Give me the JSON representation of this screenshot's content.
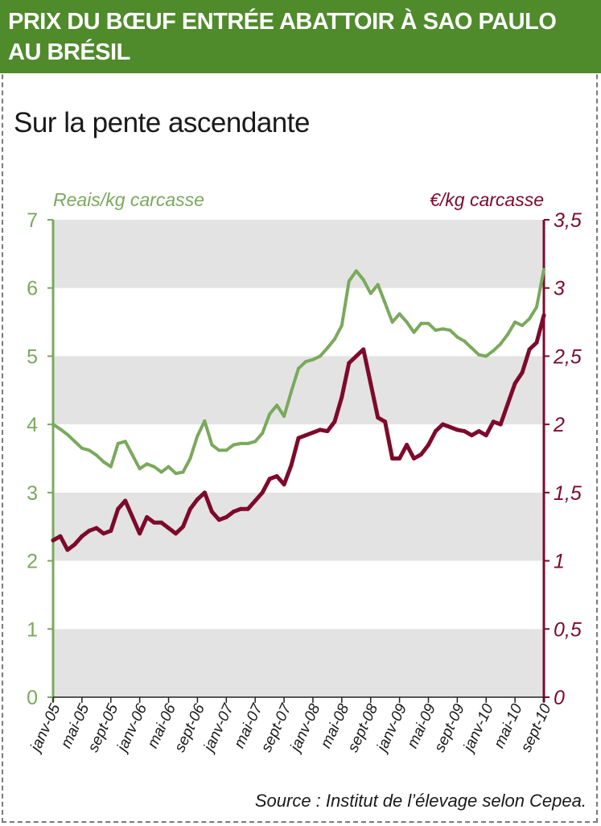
{
  "header": {
    "title": "PRIX DU BŒUF ENTRÉE ABATTOIR À SAO PAULO AU BRÉSIL"
  },
  "subtitle": "Sur la pente ascendante",
  "source": "Source : Institut de l’élevage selon Cepea.",
  "colors": {
    "header_bg": "#4f8a2b",
    "reais_series": "#7aa95c",
    "euro_series": "#7d0a2c",
    "band_gray": "#e3e3e3"
  },
  "chart_data": {
    "type": "line",
    "left_axis": {
      "label": "Reais/kg carcasse",
      "ylim": [
        0,
        7
      ],
      "ticks": [
        0,
        1,
        2,
        3,
        4,
        5,
        6,
        7
      ],
      "tick_labels": [
        "0",
        "1",
        "2",
        "3",
        "4",
        "5",
        "6",
        "7"
      ]
    },
    "right_axis": {
      "label": "€/kg carcasse",
      "ylim": [
        0,
        3.5
      ],
      "ticks": [
        0,
        0.5,
        1,
        1.5,
        2,
        2.5,
        3,
        3.5
      ],
      "tick_labels": [
        "0",
        "0,5",
        "1",
        "1,5",
        "2",
        "2,5",
        "3",
        "3,5"
      ]
    },
    "x_tick_labels": [
      "janv-05",
      "mai-05",
      "sept-05",
      "janv-06",
      "mai-06",
      "sept-06",
      "janv-07",
      "mai-07",
      "sept-07",
      "janv-08",
      "mai-08",
      "sept-08",
      "janv-09",
      "mai-09",
      "sept-09",
      "janv-10",
      "mai-10",
      "sept-10"
    ],
    "months": [
      "janv-05",
      "févr-05",
      "mars-05",
      "avr-05",
      "mai-05",
      "juin-05",
      "juil-05",
      "août-05",
      "sept-05",
      "oct-05",
      "nov-05",
      "déc-05",
      "janv-06",
      "févr-06",
      "mars-06",
      "avr-06",
      "mai-06",
      "juin-06",
      "juil-06",
      "août-06",
      "sept-06",
      "oct-06",
      "nov-06",
      "déc-06",
      "janv-07",
      "févr-07",
      "mars-07",
      "avr-07",
      "mai-07",
      "juin-07",
      "juil-07",
      "août-07",
      "sept-07",
      "oct-07",
      "nov-07",
      "déc-07",
      "janv-08",
      "févr-08",
      "mars-08",
      "avr-08",
      "mai-08",
      "juin-08",
      "juil-08",
      "août-08",
      "sept-08",
      "oct-08",
      "nov-08",
      "déc-08",
      "janv-09",
      "févr-09",
      "mars-09",
      "avr-09",
      "mai-09",
      "juin-09",
      "juil-09",
      "août-09",
      "sept-09",
      "oct-09",
      "nov-09",
      "déc-09",
      "janv-10",
      "févr-10",
      "mars-10",
      "avr-10",
      "mai-10",
      "juin-10",
      "juil-10",
      "août-10",
      "sept-10"
    ],
    "series": [
      {
        "axis": "left",
        "values": [
          4.0,
          3.93,
          3.85,
          3.75,
          3.65,
          3.62,
          3.55,
          3.45,
          3.38,
          3.72,
          3.75,
          3.55,
          3.35,
          3.42,
          3.38,
          3.3,
          3.38,
          3.28,
          3.3,
          3.5,
          3.83,
          4.05,
          3.7,
          3.62,
          3.62,
          3.7,
          3.72,
          3.72,
          3.75,
          3.87,
          4.15,
          4.28,
          4.12,
          4.48,
          4.82,
          4.92,
          4.95,
          5.0,
          5.12,
          5.25,
          5.45,
          6.1,
          6.25,
          6.12,
          5.92,
          6.05,
          5.78,
          5.5,
          5.62,
          5.5,
          5.35,
          5.48,
          5.48,
          5.38,
          5.4,
          5.38,
          5.28,
          5.22,
          5.12,
          5.02,
          5.0,
          5.08,
          5.18,
          5.32,
          5.5,
          5.45,
          5.55,
          5.72,
          6.27
        ]
      },
      {
        "axis": "right",
        "values": [
          1.15,
          1.18,
          1.08,
          1.12,
          1.18,
          1.22,
          1.24,
          1.2,
          1.22,
          1.38,
          1.44,
          1.32,
          1.2,
          1.32,
          1.28,
          1.28,
          1.24,
          1.2,
          1.25,
          1.38,
          1.45,
          1.5,
          1.36,
          1.3,
          1.32,
          1.36,
          1.38,
          1.38,
          1.44,
          1.5,
          1.6,
          1.62,
          1.56,
          1.7,
          1.9,
          1.92,
          1.94,
          1.96,
          1.95,
          2.02,
          2.2,
          2.45,
          2.5,
          2.55,
          2.3,
          2.05,
          2.02,
          1.75,
          1.75,
          1.85,
          1.75,
          1.78,
          1.85,
          1.95,
          2.0,
          1.98,
          1.96,
          1.95,
          1.92,
          1.95,
          1.92,
          2.02,
          2.0,
          2.15,
          2.3,
          2.38,
          2.55,
          2.6,
          2.8
        ]
      }
    ]
  }
}
